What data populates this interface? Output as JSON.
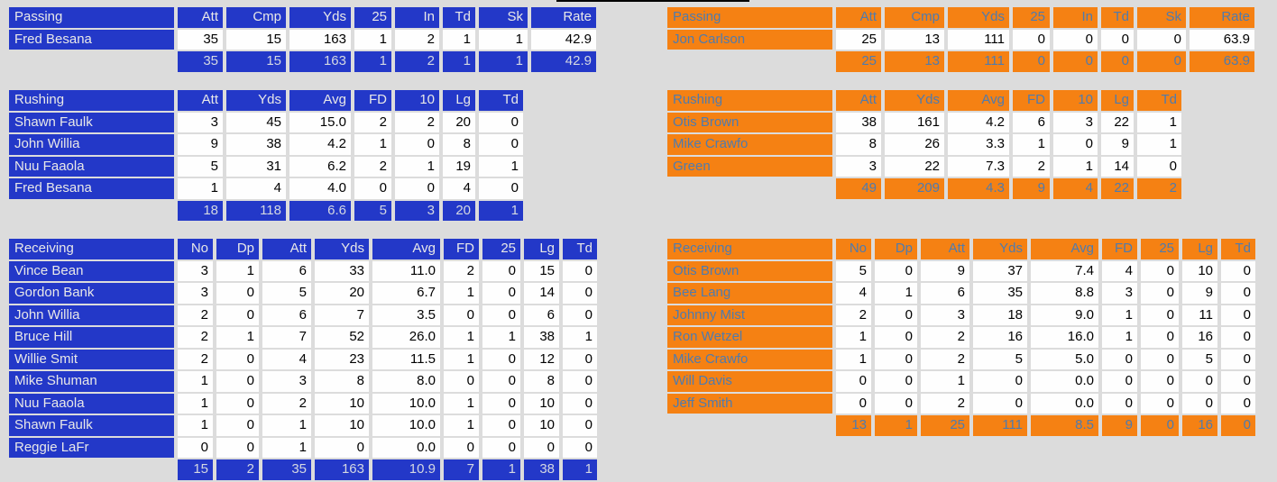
{
  "colors": {
    "background": "#dcdcdc",
    "blue": "#2338c8",
    "blue_text": "#e8e8e8",
    "blue_totals_text": "#d4d8e2",
    "orange": "#f58113",
    "steel_blue_text": "#4f7bae",
    "data_cell_bg": "#fefefe",
    "top_rule": "#000000"
  },
  "teams": [
    {
      "side": "left",
      "theme": "blue",
      "passing": {
        "title": "Passing",
        "columns": [
          "Att",
          "Cmp",
          "Yds",
          "25",
          "In",
          "Td",
          "Sk",
          "Rate"
        ],
        "rows": [
          {
            "name": "Fred Besana",
            "values": [
              "35",
              "15",
              "163",
              "1",
              "2",
              "1",
              "1",
              "42.9"
            ]
          }
        ],
        "totals": [
          "35",
          "15",
          "163",
          "1",
          "2",
          "1",
          "1",
          "42.9"
        ]
      },
      "rushing": {
        "title": "Rushing",
        "columns": [
          "Att",
          "Yds",
          "Avg",
          "FD",
          "10",
          "Lg",
          "Td"
        ],
        "rows": [
          {
            "name": "Shawn Faulk",
            "values": [
              "3",
              "45",
              "15.0",
              "2",
              "2",
              "20",
              "0"
            ]
          },
          {
            "name": "John Willia",
            "values": [
              "9",
              "38",
              "4.2",
              "1",
              "0",
              "8",
              "0"
            ]
          },
          {
            "name": "Nuu Faaola",
            "values": [
              "5",
              "31",
              "6.2",
              "2",
              "1",
              "19",
              "1"
            ]
          },
          {
            "name": "Fred Besana",
            "values": [
              "1",
              "4",
              "4.0",
              "0",
              "0",
              "4",
              "0"
            ]
          }
        ],
        "totals": [
          "18",
          "118",
          "6.6",
          "5",
          "3",
          "20",
          "1"
        ]
      },
      "receiving": {
        "title": "Receiving",
        "columns": [
          "No",
          "Dp",
          "Att",
          "Yds",
          "Avg",
          "FD",
          "25",
          "Lg",
          "Td"
        ],
        "rows": [
          {
            "name": "Vince Bean",
            "values": [
              "3",
              "1",
              "6",
              "33",
              "11.0",
              "2",
              "0",
              "15",
              "0"
            ]
          },
          {
            "name": "Gordon Bank",
            "values": [
              "3",
              "0",
              "5",
              "20",
              "6.7",
              "1",
              "0",
              "14",
              "0"
            ]
          },
          {
            "name": "John Willia",
            "values": [
              "2",
              "0",
              "6",
              "7",
              "3.5",
              "0",
              "0",
              "6",
              "0"
            ]
          },
          {
            "name": "Bruce Hill",
            "values": [
              "2",
              "1",
              "7",
              "52",
              "26.0",
              "1",
              "1",
              "38",
              "1"
            ]
          },
          {
            "name": "Willie Smit",
            "values": [
              "2",
              "0",
              "4",
              "23",
              "11.5",
              "1",
              "0",
              "12",
              "0"
            ]
          },
          {
            "name": "Mike Shuman",
            "values": [
              "1",
              "0",
              "3",
              "8",
              "8.0",
              "0",
              "0",
              "8",
              "0"
            ]
          },
          {
            "name": "Nuu Faaola",
            "values": [
              "1",
              "0",
              "2",
              "10",
              "10.0",
              "1",
              "0",
              "10",
              "0"
            ]
          },
          {
            "name": "Shawn Faulk",
            "values": [
              "1",
              "0",
              "1",
              "10",
              "10.0",
              "1",
              "0",
              "10",
              "0"
            ]
          },
          {
            "name": "Reggie LaFr",
            "values": [
              "0",
              "0",
              "1",
              "0",
              "0.0",
              "0",
              "0",
              "0",
              "0"
            ]
          }
        ],
        "totals": [
          "15",
          "2",
          "35",
          "163",
          "10.9",
          "7",
          "1",
          "38",
          "1"
        ]
      }
    },
    {
      "side": "right",
      "theme": "orange",
      "passing": {
        "title": "Passing",
        "columns": [
          "Att",
          "Cmp",
          "Yds",
          "25",
          "In",
          "Td",
          "Sk",
          "Rate"
        ],
        "rows": [
          {
            "name": "Jon Carlson",
            "values": [
              "25",
              "13",
              "111",
              "0",
              "0",
              "0",
              "0",
              "63.9"
            ]
          }
        ],
        "totals": [
          "25",
          "13",
          "111",
          "0",
          "0",
          "0",
          "0",
          "63.9"
        ]
      },
      "rushing": {
        "title": "Rushing",
        "columns": [
          "Att",
          "Yds",
          "Avg",
          "FD",
          "10",
          "Lg",
          "Td"
        ],
        "rows": [
          {
            "name": "Otis Brown",
            "values": [
              "38",
              "161",
              "4.2",
              "6",
              "3",
              "22",
              "1"
            ]
          },
          {
            "name": "Mike Crawfo",
            "values": [
              "8",
              "26",
              "3.3",
              "1",
              "0",
              "9",
              "1"
            ]
          },
          {
            "name": "Green",
            "values": [
              "3",
              "22",
              "7.3",
              "2",
              "1",
              "14",
              "0"
            ]
          }
        ],
        "totals": [
          "49",
          "209",
          "4.3",
          "9",
          "4",
          "22",
          "2"
        ]
      },
      "receiving": {
        "title": "Receiving",
        "columns": [
          "No",
          "Dp",
          "Att",
          "Yds",
          "Avg",
          "FD",
          "25",
          "Lg",
          "Td"
        ],
        "rows": [
          {
            "name": "Otis Brown",
            "values": [
              "5",
              "0",
              "9",
              "37",
              "7.4",
              "4",
              "0",
              "10",
              "0"
            ]
          },
          {
            "name": "Bee Lang",
            "values": [
              "4",
              "1",
              "6",
              "35",
              "8.8",
              "3",
              "0",
              "9",
              "0"
            ]
          },
          {
            "name": "Johnny Mist",
            "values": [
              "2",
              "0",
              "3",
              "18",
              "9.0",
              "1",
              "0",
              "11",
              "0"
            ]
          },
          {
            "name": "Ron Wetzel",
            "values": [
              "1",
              "0",
              "2",
              "16",
              "16.0",
              "1",
              "0",
              "16",
              "0"
            ]
          },
          {
            "name": "Mike Crawfo",
            "values": [
              "1",
              "0",
              "2",
              "5",
              "5.0",
              "0",
              "0",
              "5",
              "0"
            ]
          },
          {
            "name": "Will Davis",
            "values": [
              "0",
              "0",
              "1",
              "0",
              "0.0",
              "0",
              "0",
              "0",
              "0"
            ]
          },
          {
            "name": "Jeff Smith",
            "values": [
              "0",
              "0",
              "2",
              "0",
              "0.0",
              "0",
              "0",
              "0",
              "0"
            ]
          }
        ],
        "totals": [
          "13",
          "1",
          "25",
          "111",
          "8.5",
          "9",
          "0",
          "16",
          "0"
        ]
      }
    }
  ]
}
